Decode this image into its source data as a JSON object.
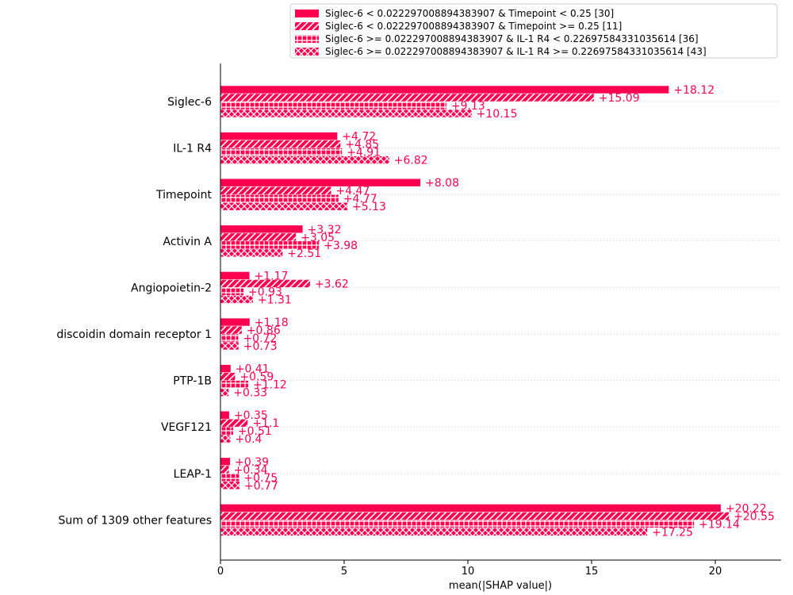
{
  "chart_data": {
    "type": "bar",
    "orientation": "horizontal",
    "title": "",
    "xlabel": "mean(|SHAP value|)",
    "ylabel": "",
    "xlim": [
      0,
      22.5
    ],
    "xticks": [
      0,
      5,
      10,
      15,
      20
    ],
    "grid": "horizontal dotted",
    "legend_position": "top-right",
    "bar_color": "#ff0051",
    "categories": [
      "Siglec-6",
      "IL-1 R4",
      "Timepoint",
      "Activin A",
      "Angiopoietin-2",
      "discoidin domain receptor 1",
      "PTP-1B",
      "VEGF121",
      "LEAP-1",
      "Sum of 1309 other features"
    ],
    "series": [
      {
        "name": "Siglec-6 < 0.022297008894383907 & Timepoint < 0.25 [30]",
        "hatch": "solid",
        "values": [
          18.12,
          4.72,
          8.08,
          3.32,
          1.17,
          1.18,
          0.41,
          0.35,
          0.39,
          20.22
        ],
        "labels": [
          "+18.12",
          "+4.72",
          "+8.08",
          "+3.32",
          "+1.17",
          "+1.18",
          "+0.41",
          "+0.35",
          "+0.39",
          "+20.22"
        ]
      },
      {
        "name": "Siglec-6 < 0.022297008894383907 & Timepoint >= 0.25 [11]",
        "hatch": "diagonal",
        "values": [
          15.09,
          4.85,
          4.47,
          3.05,
          3.62,
          0.86,
          0.59,
          1.1,
          0.34,
          20.55
        ],
        "labels": [
          "+15.09",
          "+4.85",
          "+4.47",
          "+3.05",
          "+3.62",
          "+0.86",
          "+0.59",
          "+1.1",
          "+0.34",
          "+20.55"
        ]
      },
      {
        "name": "Siglec-6 >= 0.022297008894383907 & IL-1 R4 < 0.22697584331035614 [36]",
        "hatch": "grid",
        "values": [
          9.13,
          4.91,
          4.77,
          3.98,
          0.93,
          0.72,
          1.12,
          0.51,
          0.75,
          19.14
        ],
        "labels": [
          "+9.13",
          "+4.91",
          "+4.77",
          "+3.98",
          "+0.93",
          "+0.72",
          "+1.12",
          "+0.51",
          "+0.75",
          "+19.14"
        ]
      },
      {
        "name": "Siglec-6 >= 0.022297008894383907 & IL-1 R4 >= 0.22697584331035614 [43]",
        "hatch": "cross",
        "values": [
          10.15,
          6.82,
          5.13,
          2.51,
          1.31,
          0.73,
          0.33,
          0.4,
          0.77,
          17.25
        ],
        "labels": [
          "+10.15",
          "+6.82",
          "+5.13",
          "+2.51",
          "+1.31",
          "+0.73",
          "+0.33",
          "+0.4",
          "+0.77",
          "+17.25"
        ]
      }
    ]
  }
}
